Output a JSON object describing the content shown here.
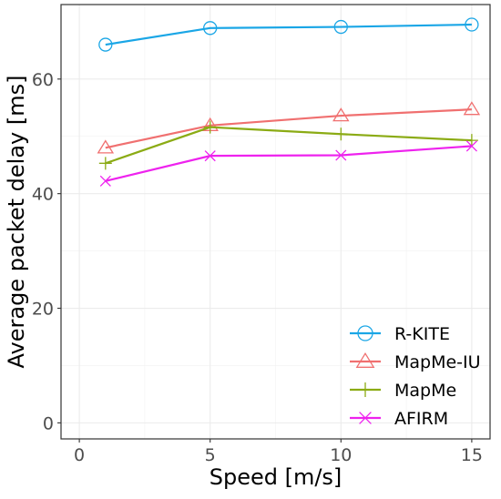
{
  "chart_data": {
    "type": "line",
    "xlabel": "Speed [m/s]",
    "ylabel": "Average packet delay [ms]",
    "x": [
      1,
      5,
      10,
      15
    ],
    "xlim": [
      -0.7,
      15.7
    ],
    "ylim": [
      -2.8,
      73
    ],
    "xticks": [
      0,
      5,
      10,
      15
    ],
    "yticks": [
      0,
      20,
      40,
      60
    ],
    "xtick_labels": [
      "0",
      "5",
      "10",
      "15"
    ],
    "ytick_labels": [
      "0",
      "20",
      "40",
      "60"
    ],
    "grid": true,
    "legend_position": "bottom-right",
    "series": [
      {
        "name": "R-KITE",
        "values": [
          66.0,
          68.9,
          69.1,
          69.5
        ],
        "color": "#1aa6e6",
        "marker": "circle"
      },
      {
        "name": "MapMe-IU",
        "values": [
          48.0,
          51.9,
          53.6,
          54.7
        ],
        "color": "#f07070",
        "marker": "triangle"
      },
      {
        "name": "MapMe",
        "values": [
          45.3,
          51.6,
          50.4,
          49.3
        ],
        "color": "#8bab14",
        "marker": "plus"
      },
      {
        "name": "AFIRM",
        "values": [
          42.2,
          46.6,
          46.7,
          48.3
        ],
        "color": "#ee22ee",
        "marker": "x"
      }
    ]
  }
}
